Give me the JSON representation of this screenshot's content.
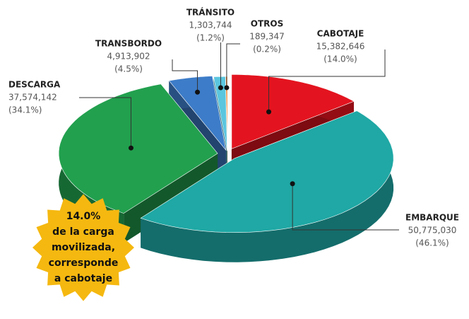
{
  "chart_data": {
    "type": "pie",
    "categories": [
      "CABOTAJE",
      "EMBARQUE",
      "DESCARGA",
      "TRANSBORDO",
      "TRÁNSITO",
      "OTROS"
    ],
    "values": [
      15382646,
      50775030,
      37574142,
      4913902,
      1303744,
      189347
    ],
    "value_labels": [
      "15,382,646",
      "50,775,030",
      "37,574,142",
      "4,913,902",
      "1,303,744",
      "189,347"
    ],
    "percentages": [
      14.0,
      46.1,
      34.1,
      4.5,
      1.2,
      0.2
    ],
    "percentage_labels": [
      "(14.0%)",
      "(46.1%)",
      "(34.1%)",
      "(4.5%)",
      "(1.2%)",
      "(0.2%)"
    ],
    "colors": [
      "#e3141f",
      "#1fa8a5",
      "#22a04e",
      "#3d7cc8",
      "#5bc6de",
      "#f07a1a"
    ],
    "annotation": [
      "14.0%",
      "de la carga",
      "movilizada,",
      "corresponde",
      "a cabotaje"
    ]
  }
}
